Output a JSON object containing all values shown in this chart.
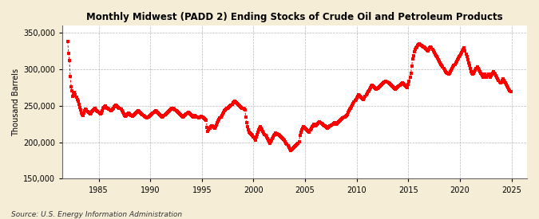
{
  "title": "Monthly Midwest (PADD 2) Ending Stocks of Crude Oil and Petroleum Products",
  "ylabel": "Thousand Barrels",
  "source": "Source: U.S. Energy Information Administration",
  "line_color": "#FF0000",
  "background_color": "#F5EDD6",
  "plot_bg_color": "#FFFFFF",
  "ylim": [
    150000,
    360000
  ],
  "yticks": [
    150000,
    200000,
    250000,
    300000,
    350000
  ],
  "xlim_start": 1981.5,
  "xlim_end": 2026.5,
  "xticks": [
    1985,
    1990,
    1995,
    2000,
    2005,
    2010,
    2015,
    2020,
    2025
  ],
  "data": {
    "1982": [
      338000,
      322000,
      312000,
      290000,
      276000,
      270000,
      263000,
      264000,
      268000,
      265000,
      262000,
      258000
    ],
    "1983": [
      256000,
      252000,
      248000,
      244000,
      240000,
      238000,
      237000,
      240000,
      243000,
      245000,
      244000,
      242000
    ],
    "1984": [
      241000,
      240000,
      239000,
      240000,
      242000,
      243000,
      244000,
      245000,
      246000,
      244000,
      243000,
      242000
    ],
    "1985": [
      241000,
      240000,
      239000,
      240000,
      243000,
      246000,
      248000,
      249000,
      250000,
      248000,
      247000,
      246000
    ],
    "1986": [
      245000,
      244000,
      243000,
      244000,
      245000,
      247000,
      249000,
      250000,
      251000,
      250000,
      249000,
      248000
    ],
    "1987": [
      247000,
      246000,
      245000,
      243000,
      241000,
      239000,
      237000,
      236000,
      237000,
      238000,
      239000,
      240000
    ],
    "1988": [
      239000,
      238000,
      237000,
      236000,
      237000,
      238000,
      239000,
      240000,
      241000,
      242000,
      243000,
      242000
    ],
    "1989": [
      241000,
      240000,
      239000,
      238000,
      237000,
      236000,
      235000,
      234000,
      233000,
      234000,
      235000,
      236000
    ],
    "1990": [
      237000,
      238000,
      239000,
      240000,
      241000,
      242000,
      243000,
      242000,
      241000,
      240000,
      239000,
      238000
    ],
    "1991": [
      237000,
      236000,
      235000,
      236000,
      237000,
      238000,
      239000,
      240000,
      241000,
      242000,
      243000,
      244000
    ],
    "1992": [
      245000,
      246000,
      247000,
      246000,
      245000,
      244000,
      243000,
      242000,
      241000,
      240000,
      239000,
      238000
    ],
    "1993": [
      237000,
      236000,
      235000,
      236000,
      237000,
      238000,
      239000,
      240000,
      241000,
      240000,
      239000,
      238000
    ],
    "1994": [
      237000,
      236000,
      235000,
      236000,
      237000,
      236000,
      235000,
      234000,
      233000,
      234000,
      235000,
      236000
    ],
    "1995": [
      235000,
      234000,
      233000,
      232000,
      231000,
      230000,
      220000,
      215000,
      217000,
      219000,
      221000,
      223000
    ],
    "1996": [
      222000,
      221000,
      220000,
      219000,
      221000,
      224000,
      227000,
      229000,
      231000,
      233000,
      235000,
      237000
    ],
    "1997": [
      239000,
      241000,
      243000,
      244000,
      245000,
      246000,
      247000,
      248000,
      249000,
      250000,
      251000,
      252000
    ],
    "1998": [
      254000,
      255000,
      256000,
      255000,
      254000,
      253000,
      252000,
      251000,
      250000,
      249000,
      248000,
      247000
    ],
    "1999": [
      246000,
      245000,
      244000,
      235000,
      227000,
      221000,
      217000,
      214000,
      213000,
      212000,
      211000,
      209000
    ],
    "2000": [
      207000,
      205000,
      203000,
      207000,
      211000,
      214000,
      217000,
      219000,
      221000,
      219000,
      217000,
      215000
    ],
    "2001": [
      213000,
      211000,
      209000,
      207000,
      205000,
      203000,
      201000,
      199000,
      201000,
      203000,
      205000,
      207000
    ],
    "2002": [
      209000,
      211000,
      213000,
      212000,
      211000,
      210000,
      209000,
      208000,
      207000,
      206000,
      205000,
      204000
    ],
    "2003": [
      203000,
      201000,
      199000,
      197000,
      195000,
      193000,
      191000,
      189000,
      190000,
      191000,
      192000,
      193000
    ],
    "2004": [
      194000,
      195000,
      196000,
      197000,
      199000,
      201000,
      209000,
      214000,
      217000,
      219000,
      221000,
      220000
    ],
    "2005": [
      219000,
      218000,
      217000,
      216000,
      215000,
      214000,
      217000,
      219000,
      221000,
      223000,
      225000,
      224000
    ],
    "2006": [
      223000,
      224000,
      225000,
      226000,
      227000,
      228000,
      227000,
      226000,
      225000,
      224000,
      223000,
      222000
    ],
    "2007": [
      221000,
      220000,
      219000,
      220000,
      221000,
      222000,
      223000,
      224000,
      225000,
      226000,
      227000,
      226000
    ],
    "2008": [
      225000,
      226000,
      227000,
      228000,
      229000,
      230000,
      231000,
      232000,
      233000,
      234000,
      235000,
      236000
    ],
    "2009": [
      237000,
      238000,
      241000,
      243000,
      245000,
      247000,
      249000,
      251000,
      253000,
      255000,
      257000,
      259000
    ],
    "2010": [
      261000,
      263000,
      265000,
      264000,
      263000,
      262000,
      261000,
      260000,
      259000,
      261000,
      263000,
      265000
    ],
    "2011": [
      267000,
      269000,
      271000,
      273000,
      275000,
      277000,
      278000,
      277000,
      276000,
      275000,
      274000,
      273000
    ],
    "2012": [
      274000,
      275000,
      276000,
      277000,
      278000,
      279000,
      280000,
      281000,
      282000,
      283000,
      284000,
      283000
    ],
    "2013": [
      282000,
      281000,
      280000,
      279000,
      278000,
      277000,
      276000,
      275000,
      274000,
      273000,
      274000,
      275000
    ],
    "2014": [
      276000,
      277000,
      278000,
      279000,
      280000,
      281000,
      280000,
      279000,
      278000,
      277000,
      276000,
      275000
    ],
    "2015": [
      279000,
      284000,
      289000,
      294000,
      304000,
      314000,
      319000,
      324000,
      327000,
      329000,
      331000,
      333000
    ],
    "2016": [
      334000,
      335000,
      334000,
      333000,
      332000,
      331000,
      330000,
      329000,
      328000,
      327000,
      326000,
      325000
    ],
    "2017": [
      327000,
      329000,
      331000,
      329000,
      327000,
      325000,
      323000,
      321000,
      319000,
      317000,
      315000,
      313000
    ],
    "2018": [
      311000,
      309000,
      307000,
      305000,
      303000,
      301000,
      299000,
      297000,
      296000,
      295000,
      294000,
      293000
    ],
    "2019": [
      295000,
      297000,
      299000,
      301000,
      303000,
      305000,
      307000,
      309000,
      311000,
      313000,
      315000,
      317000
    ],
    "2020": [
      319000,
      321000,
      323000,
      325000,
      327000,
      329000,
      325000,
      321000,
      317000,
      313000,
      309000,
      305000
    ],
    "2021": [
      301000,
      297000,
      295000,
      293000,
      295000,
      297000,
      299000,
      301000,
      303000,
      301000,
      299000,
      297000
    ],
    "2022": [
      295000,
      293000,
      291000,
      289000,
      291000,
      293000,
      291000,
      289000,
      291000,
      293000,
      291000,
      289000
    ],
    "2023": [
      291000,
      293000,
      295000,
      297000,
      295000,
      293000,
      291000,
      289000,
      287000,
      285000,
      283000,
      281000
    ],
    "2024": [
      283000,
      285000,
      287000,
      285000,
      283000,
      281000,
      279000,
      277000,
      275000,
      273000,
      271000,
      269000
    ]
  }
}
